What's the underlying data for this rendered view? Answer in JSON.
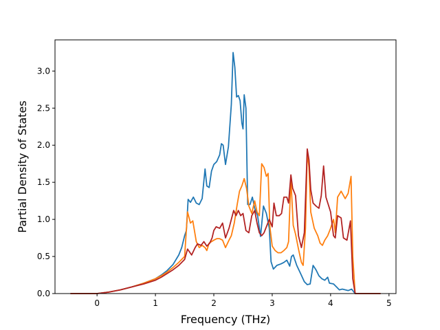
{
  "chart_data": {
    "type": "line",
    "title": "",
    "xlabel": "Frequency (THz)",
    "ylabel": "Partial Density of States",
    "xlim": [
      -0.72,
      5.12
    ],
    "ylim": [
      0.0,
      3.42
    ],
    "xticks": [
      0,
      1,
      2,
      3,
      4,
      5
    ],
    "xtick_labels": [
      "0",
      "1",
      "2",
      "3",
      "4",
      "5"
    ],
    "yticks": [
      0.0,
      0.5,
      1.0,
      1.5,
      2.0,
      2.5,
      3.0
    ],
    "ytick_labels": [
      "0.0",
      "0.5",
      "1.0",
      "1.5",
      "2.0",
      "2.5",
      "3.0"
    ],
    "grid": false,
    "legend": "none",
    "series": [
      {
        "color": "#1f77b4",
        "points": [
          [
            -0.45,
            0.0
          ],
          [
            0.0,
            0.0
          ],
          [
            0.2,
            0.02
          ],
          [
            0.4,
            0.05
          ],
          [
            0.6,
            0.09
          ],
          [
            0.8,
            0.14
          ],
          [
            1.0,
            0.2
          ],
          [
            1.1,
            0.25
          ],
          [
            1.2,
            0.31
          ],
          [
            1.3,
            0.39
          ],
          [
            1.4,
            0.52
          ],
          [
            1.45,
            0.62
          ],
          [
            1.5,
            0.78
          ],
          [
            1.53,
            0.85
          ],
          [
            1.56,
            1.27
          ],
          [
            1.6,
            1.23
          ],
          [
            1.65,
            1.3
          ],
          [
            1.7,
            1.22
          ],
          [
            1.75,
            1.2
          ],
          [
            1.8,
            1.28
          ],
          [
            1.85,
            1.68
          ],
          [
            1.88,
            1.45
          ],
          [
            1.92,
            1.43
          ],
          [
            1.96,
            1.65
          ],
          [
            2.0,
            1.74
          ],
          [
            2.05,
            1.78
          ],
          [
            2.1,
            1.87
          ],
          [
            2.13,
            2.02
          ],
          [
            2.16,
            2.0
          ],
          [
            2.2,
            1.74
          ],
          [
            2.25,
            1.98
          ],
          [
            2.3,
            2.55
          ],
          [
            2.33,
            3.25
          ],
          [
            2.36,
            3.05
          ],
          [
            2.39,
            2.65
          ],
          [
            2.42,
            2.67
          ],
          [
            2.45,
            2.6
          ],
          [
            2.48,
            2.3
          ],
          [
            2.5,
            2.22
          ],
          [
            2.52,
            2.68
          ],
          [
            2.55,
            2.5
          ],
          [
            2.58,
            1.2
          ],
          [
            2.62,
            1.2
          ],
          [
            2.66,
            1.3
          ],
          [
            2.7,
            1.15
          ],
          [
            2.75,
            1.05
          ],
          [
            2.8,
            0.77
          ],
          [
            2.85,
            1.18
          ],
          [
            2.9,
            1.08
          ],
          [
            2.95,
            0.88
          ],
          [
            2.98,
            0.43
          ],
          [
            3.02,
            0.33
          ],
          [
            3.08,
            0.38
          ],
          [
            3.15,
            0.4
          ],
          [
            3.2,
            0.42
          ],
          [
            3.25,
            0.45
          ],
          [
            3.3,
            0.37
          ],
          [
            3.33,
            0.5
          ],
          [
            3.36,
            0.52
          ],
          [
            3.42,
            0.38
          ],
          [
            3.48,
            0.28
          ],
          [
            3.55,
            0.16
          ],
          [
            3.6,
            0.12
          ],
          [
            3.65,
            0.13
          ],
          [
            3.7,
            0.38
          ],
          [
            3.75,
            0.32
          ],
          [
            3.8,
            0.24
          ],
          [
            3.85,
            0.2
          ],
          [
            3.9,
            0.18
          ],
          [
            3.95,
            0.22
          ],
          [
            3.98,
            0.14
          ],
          [
            4.05,
            0.13
          ],
          [
            4.1,
            0.09
          ],
          [
            4.15,
            0.05
          ],
          [
            4.2,
            0.06
          ],
          [
            4.3,
            0.04
          ],
          [
            4.36,
            0.06
          ],
          [
            4.42,
            0.0
          ],
          [
            4.85,
            0.0
          ]
        ]
      },
      {
        "color": "#ff7f0e",
        "points": [
          [
            -0.45,
            0.0
          ],
          [
            0.0,
            0.0
          ],
          [
            0.2,
            0.02
          ],
          [
            0.4,
            0.05
          ],
          [
            0.6,
            0.09
          ],
          [
            0.8,
            0.14
          ],
          [
            1.0,
            0.2
          ],
          [
            1.1,
            0.24
          ],
          [
            1.2,
            0.29
          ],
          [
            1.3,
            0.35
          ],
          [
            1.4,
            0.42
          ],
          [
            1.5,
            0.5
          ],
          [
            1.55,
            1.1
          ],
          [
            1.6,
            0.95
          ],
          [
            1.64,
            0.98
          ],
          [
            1.7,
            0.7
          ],
          [
            1.75,
            0.62
          ],
          [
            1.8,
            0.65
          ],
          [
            1.85,
            0.62
          ],
          [
            1.88,
            0.58
          ],
          [
            1.92,
            0.68
          ],
          [
            2.0,
            0.72
          ],
          [
            2.05,
            0.74
          ],
          [
            2.1,
            0.74
          ],
          [
            2.15,
            0.72
          ],
          [
            2.2,
            0.62
          ],
          [
            2.26,
            0.72
          ],
          [
            2.3,
            0.78
          ],
          [
            2.35,
            0.95
          ],
          [
            2.4,
            1.2
          ],
          [
            2.44,
            1.38
          ],
          [
            2.48,
            1.45
          ],
          [
            2.52,
            1.55
          ],
          [
            2.56,
            1.42
          ],
          [
            2.6,
            1.18
          ],
          [
            2.65,
            1.08
          ],
          [
            2.7,
            1.25
          ],
          [
            2.74,
            1.1
          ],
          [
            2.78,
            1.05
          ],
          [
            2.82,
            1.75
          ],
          [
            2.86,
            1.7
          ],
          [
            2.9,
            1.58
          ],
          [
            2.93,
            1.62
          ],
          [
            2.96,
            0.9
          ],
          [
            3.0,
            0.64
          ],
          [
            3.05,
            0.58
          ],
          [
            3.1,
            0.55
          ],
          [
            3.15,
            0.55
          ],
          [
            3.2,
            0.58
          ],
          [
            3.25,
            0.62
          ],
          [
            3.28,
            0.7
          ],
          [
            3.32,
            1.55
          ],
          [
            3.36,
            0.92
          ],
          [
            3.4,
            0.8
          ],
          [
            3.45,
            0.6
          ],
          [
            3.5,
            0.42
          ],
          [
            3.53,
            0.38
          ],
          [
            3.57,
            0.88
          ],
          [
            3.6,
            1.9
          ],
          [
            3.63,
            1.7
          ],
          [
            3.66,
            1.1
          ],
          [
            3.72,
            0.88
          ],
          [
            3.78,
            0.78
          ],
          [
            3.82,
            0.68
          ],
          [
            3.86,
            0.65
          ],
          [
            3.9,
            0.72
          ],
          [
            3.95,
            0.78
          ],
          [
            4.0,
            0.88
          ],
          [
            4.05,
            1.0
          ],
          [
            4.08,
            0.82
          ],
          [
            4.12,
            1.3
          ],
          [
            4.18,
            1.38
          ],
          [
            4.25,
            1.28
          ],
          [
            4.3,
            1.35
          ],
          [
            4.35,
            1.58
          ],
          [
            4.38,
            0.5
          ],
          [
            4.42,
            0.0
          ],
          [
            4.85,
            0.0
          ]
        ]
      },
      {
        "color": "#b22222",
        "points": [
          [
            -0.45,
            0.0
          ],
          [
            0.0,
            0.0
          ],
          [
            0.2,
            0.02
          ],
          [
            0.4,
            0.05
          ],
          [
            0.6,
            0.09
          ],
          [
            0.8,
            0.13
          ],
          [
            1.0,
            0.18
          ],
          [
            1.1,
            0.22
          ],
          [
            1.2,
            0.27
          ],
          [
            1.3,
            0.32
          ],
          [
            1.4,
            0.38
          ],
          [
            1.5,
            0.46
          ],
          [
            1.55,
            0.6
          ],
          [
            1.62,
            0.52
          ],
          [
            1.68,
            0.62
          ],
          [
            1.72,
            0.67
          ],
          [
            1.78,
            0.65
          ],
          [
            1.83,
            0.7
          ],
          [
            1.88,
            0.64
          ],
          [
            1.93,
            0.68
          ],
          [
            1.97,
            0.75
          ],
          [
            2.0,
            0.85
          ],
          [
            2.04,
            0.9
          ],
          [
            2.1,
            0.88
          ],
          [
            2.15,
            0.95
          ],
          [
            2.2,
            0.75
          ],
          [
            2.26,
            0.88
          ],
          [
            2.3,
            1.0
          ],
          [
            2.34,
            1.12
          ],
          [
            2.38,
            1.05
          ],
          [
            2.42,
            1.12
          ],
          [
            2.46,
            1.05
          ],
          [
            2.5,
            1.08
          ],
          [
            2.55,
            0.85
          ],
          [
            2.6,
            0.82
          ],
          [
            2.65,
            1.05
          ],
          [
            2.7,
            1.12
          ],
          [
            2.74,
            0.95
          ],
          [
            2.78,
            0.82
          ],
          [
            2.82,
            0.78
          ],
          [
            2.86,
            0.82
          ],
          [
            2.9,
            0.9
          ],
          [
            2.95,
            1.0
          ],
          [
            3.0,
            0.9
          ],
          [
            3.03,
            1.22
          ],
          [
            3.07,
            1.05
          ],
          [
            3.12,
            1.05
          ],
          [
            3.16,
            1.08
          ],
          [
            3.2,
            1.3
          ],
          [
            3.25,
            1.3
          ],
          [
            3.28,
            1.22
          ],
          [
            3.32,
            1.6
          ],
          [
            3.35,
            1.42
          ],
          [
            3.4,
            1.32
          ],
          [
            3.45,
            0.78
          ],
          [
            3.5,
            0.62
          ],
          [
            3.55,
            0.82
          ],
          [
            3.6,
            1.95
          ],
          [
            3.63,
            1.8
          ],
          [
            3.66,
            1.4
          ],
          [
            3.7,
            1.22
          ],
          [
            3.75,
            1.18
          ],
          [
            3.8,
            1.15
          ],
          [
            3.84,
            1.32
          ],
          [
            3.88,
            1.72
          ],
          [
            3.92,
            1.3
          ],
          [
            3.96,
            1.2
          ],
          [
            4.0,
            1.1
          ],
          [
            4.05,
            0.78
          ],
          [
            4.08,
            0.75
          ],
          [
            4.12,
            1.05
          ],
          [
            4.18,
            1.02
          ],
          [
            4.22,
            0.75
          ],
          [
            4.28,
            0.72
          ],
          [
            4.34,
            0.98
          ],
          [
            4.38,
            0.2
          ],
          [
            4.42,
            0.0
          ],
          [
            4.85,
            0.0
          ]
        ]
      }
    ]
  }
}
